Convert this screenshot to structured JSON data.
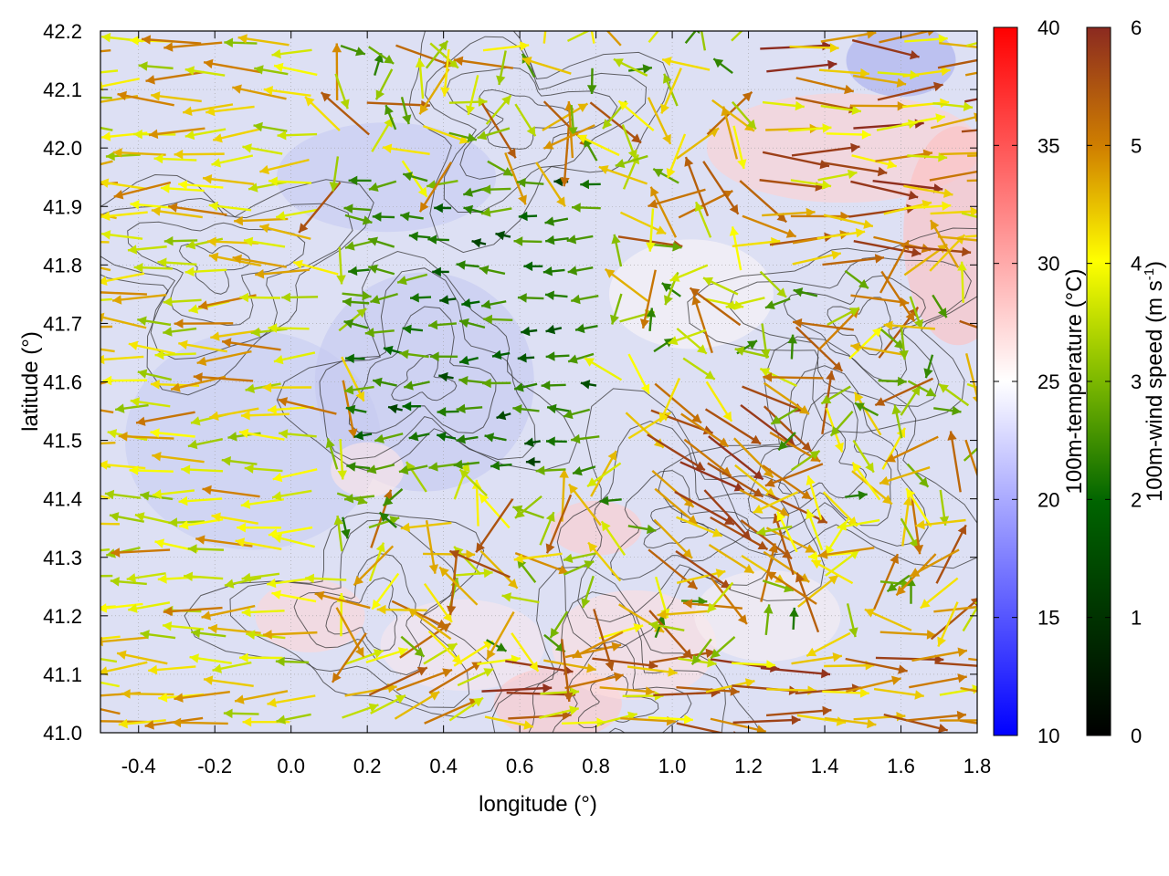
{
  "chart_data": {
    "type": "heatmap",
    "title": "",
    "xlabel": "longitude (°)",
    "ylabel": "latitude (°)",
    "xlim": [
      -0.5,
      1.8
    ],
    "ylim": [
      41.0,
      42.2
    ],
    "x_ticks": [
      "-0.4",
      "-0.2",
      "0.0",
      "0.2",
      "0.4",
      "0.6",
      "0.8",
      "1.0",
      "1.2",
      "1.4",
      "1.6",
      "1.8"
    ],
    "y_ticks": [
      "41.0",
      "41.1",
      "41.2",
      "41.3",
      "41.4",
      "41.5",
      "41.6",
      "41.7",
      "41.8",
      "41.9",
      "42.0",
      "42.1",
      "42.2"
    ],
    "grid": true,
    "colorbars": [
      {
        "label": "100m-temperature (°C)",
        "range": [
          10,
          40
        ],
        "ticks": [
          "10",
          "15",
          "20",
          "25",
          "30",
          "35",
          "40"
        ],
        "colors": [
          "#0000ff",
          "#ffffff",
          "#ff0000"
        ]
      },
      {
        "label_prefix": "100m-wind speed (m s",
        "label_exp": "-1",
        "label_suffix": ")",
        "range": [
          0,
          6
        ],
        "ticks": [
          "0",
          "1",
          "2",
          "3",
          "4",
          "5",
          "6"
        ],
        "colors": [
          "#000000",
          "#006400",
          "#7cb800",
          "#ffff00",
          "#d08000",
          "#8b2a20"
        ]
      }
    ],
    "layers": [
      "temperature field",
      "terrain contours",
      "wind vectors"
    ]
  }
}
